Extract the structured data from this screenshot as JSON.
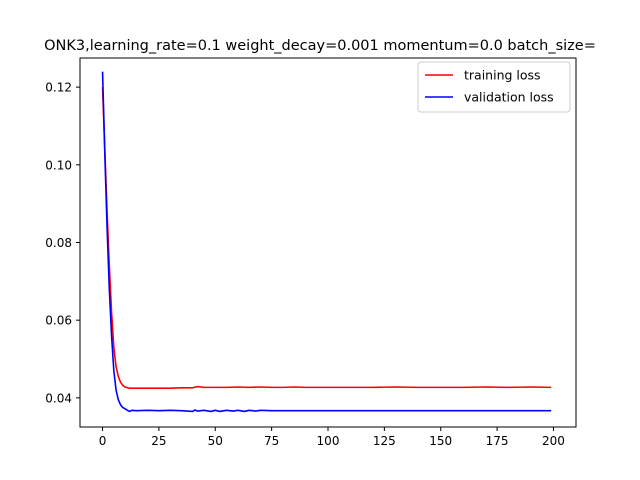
{
  "chart_data": {
    "type": "line",
    "title": "ONK3,learning_rate=0.1  weight_decay=0.001  momentum=0.0  batch_size=",
    "xlabel": "",
    "ylabel": "",
    "xlim": [
      -10,
      210
    ],
    "ylim": [
      0.0325,
      0.1275
    ],
    "xticks": [
      0,
      25,
      50,
      75,
      100,
      125,
      150,
      175,
      200
    ],
    "yticks": [
      0.04,
      0.06,
      0.08,
      0.1,
      0.12
    ],
    "ytick_labels": [
      "0.04",
      "0.06",
      "0.08",
      "0.10",
      "0.12"
    ],
    "grid": false,
    "legend_position": "top-right",
    "series": [
      {
        "name": "training loss",
        "color": "#ff0000",
        "x": [
          0,
          1,
          2,
          3,
          4,
          5,
          6,
          7,
          8,
          9,
          10,
          11,
          12,
          13,
          15,
          20,
          25,
          30,
          35,
          40,
          42,
          45,
          50,
          55,
          60,
          65,
          70,
          75,
          80,
          85,
          90,
          100,
          110,
          120,
          130,
          140,
          150,
          160,
          170,
          180,
          190,
          199
        ],
        "values": [
          0.12,
          0.104,
          0.088,
          0.074,
          0.062,
          0.053,
          0.048,
          0.0455,
          0.044,
          0.0432,
          0.0428,
          0.0426,
          0.0425,
          0.0425,
          0.0425,
          0.0425,
          0.0425,
          0.0425,
          0.0426,
          0.0426,
          0.0429,
          0.0427,
          0.0427,
          0.0427,
          0.0428,
          0.0427,
          0.0428,
          0.0427,
          0.0427,
          0.0428,
          0.0427,
          0.0427,
          0.0427,
          0.0427,
          0.0428,
          0.0427,
          0.0427,
          0.0427,
          0.0428,
          0.0427,
          0.0428,
          0.0427
        ]
      },
      {
        "name": "validation loss",
        "color": "#0000ff",
        "x": [
          0,
          1,
          2,
          3,
          4,
          5,
          6,
          7,
          8,
          9,
          10,
          11,
          12,
          13,
          15,
          20,
          25,
          30,
          35,
          40,
          41,
          42,
          45,
          48,
          50,
          52,
          55,
          58,
          60,
          63,
          65,
          68,
          70,
          75,
          80,
          85,
          90,
          100,
          110,
          120,
          130,
          140,
          150,
          160,
          170,
          180,
          190,
          199
        ],
        "values": [
          0.124,
          0.103,
          0.084,
          0.068,
          0.056,
          0.047,
          0.042,
          0.0395,
          0.0382,
          0.0375,
          0.0372,
          0.0368,
          0.0365,
          0.0368,
          0.0367,
          0.0368,
          0.0367,
          0.0368,
          0.0367,
          0.0365,
          0.0369,
          0.0366,
          0.0368,
          0.0365,
          0.0368,
          0.0365,
          0.0368,
          0.0366,
          0.0368,
          0.0365,
          0.0368,
          0.0366,
          0.0368,
          0.0367,
          0.0367,
          0.0367,
          0.0367,
          0.0367,
          0.0367,
          0.0367,
          0.0367,
          0.0367,
          0.0367,
          0.0367,
          0.0367,
          0.0367,
          0.0367,
          0.0367
        ]
      }
    ]
  }
}
